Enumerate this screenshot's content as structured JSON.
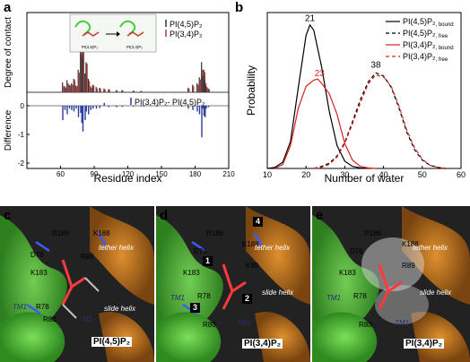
{
  "panel_letters": {
    "a": "a",
    "b": "b",
    "c": "c",
    "d": "d",
    "e": "e"
  },
  "chart_data": [
    {
      "type": "bar",
      "panel": "a",
      "top": {
        "ylabel": "Degree of contact",
        "legend": [
          "PI(4,5)P₂",
          "PI(3,4)P₂"
        ],
        "inset_labels": [
          "PI(4,5)P₂",
          "PI(3,4)P₂"
        ],
        "colors": {
          "pi45": "#333333",
          "pi34": "#b03a3a"
        },
        "bars": [
          {
            "x": 62,
            "pi45": 0.13,
            "pi34": 0.08
          },
          {
            "x": 64,
            "pi45": 0.08,
            "pi34": 0.06
          },
          {
            "x": 66,
            "pi45": 0.16,
            "pi34": 0.12
          },
          {
            "x": 68,
            "pi45": 0.1,
            "pi34": 0.09
          },
          {
            "x": 70,
            "pi45": 0.12,
            "pi34": 0.1
          },
          {
            "x": 72,
            "pi45": 0.18,
            "pi34": 0.16
          },
          {
            "x": 74,
            "pi45": 0.09,
            "pi34": 0.08
          },
          {
            "x": 76,
            "pi45": 0.3,
            "pi34": 0.26
          },
          {
            "x": 78,
            "pi45": 1.0,
            "pi34": 0.97
          },
          {
            "x": 79,
            "pi45": 0.5,
            "pi34": 0.45
          },
          {
            "x": 80,
            "pi45": 0.7,
            "pi34": 0.62
          },
          {
            "x": 82,
            "pi45": 0.25,
            "pi34": 0.2
          },
          {
            "x": 83,
            "pi45": 0.4,
            "pi34": 0.38
          },
          {
            "x": 85,
            "pi45": 0.18,
            "pi34": 0.15
          },
          {
            "x": 87,
            "pi45": 0.08,
            "pi34": 0.06
          },
          {
            "x": 89,
            "pi45": 0.1,
            "pi34": 0.09
          },
          {
            "x": 92,
            "pi45": 0.07,
            "pi34": 0.05
          },
          {
            "x": 95,
            "pi45": 0.06,
            "pi34": 0.05
          },
          {
            "x": 99,
            "pi45": 0.05,
            "pi34": 0.04
          },
          {
            "x": 103,
            "pi45": 0.04,
            "pi34": 0.04
          },
          {
            "x": 110,
            "pi45": 0.03,
            "pi34": 0.02
          },
          {
            "x": 115,
            "pi45": 0.03,
            "pi34": 0.02
          },
          {
            "x": 125,
            "pi45": 0.02,
            "pi34": 0.02
          },
          {
            "x": 132,
            "pi45": 0.02,
            "pi34": 0.01
          },
          {
            "x": 174,
            "pi45": 0.06,
            "pi34": 0.05
          },
          {
            "x": 178,
            "pi45": 0.1,
            "pi34": 0.08
          },
          {
            "x": 182,
            "pi45": 0.12,
            "pi34": 0.1
          },
          {
            "x": 184,
            "pi45": 0.2,
            "pi34": 0.17
          },
          {
            "x": 186,
            "pi45": 0.4,
            "pi34": 0.3
          },
          {
            "x": 187,
            "pi45": 0.22,
            "pi34": 0.21
          },
          {
            "x": 188,
            "pi45": 0.3,
            "pi34": 0.27
          },
          {
            "x": 189,
            "pi45": 0.16,
            "pi34": 0.12
          },
          {
            "x": 190,
            "pi45": 0.08,
            "pi34": 0.07
          },
          {
            "x": 192,
            "pi45": 0.05,
            "pi34": 0.04
          }
        ]
      },
      "bottom": {
        "ylabel": "Difference",
        "legend": "PI(3,4)P₂- PI(4,5)P₂",
        "color": "#2c3a9c",
        "ylim": [
          -2,
          2
        ],
        "yticks": [
          "0",
          "-1",
          "-2"
        ],
        "bars": [
          {
            "x": 62,
            "v": -0.5
          },
          {
            "x": 64,
            "v": -0.15
          },
          {
            "x": 66,
            "v": -0.3
          },
          {
            "x": 68,
            "v": -0.1
          },
          {
            "x": 70,
            "v": -0.15
          },
          {
            "x": 72,
            "v": -0.2
          },
          {
            "x": 74,
            "v": -0.1
          },
          {
            "x": 76,
            "v": -0.4
          },
          {
            "x": 78,
            "v": -0.25
          },
          {
            "x": 79,
            "v": -0.6
          },
          {
            "x": 80,
            "v": -0.9
          },
          {
            "x": 82,
            "v": -0.5
          },
          {
            "x": 83,
            "v": -0.2
          },
          {
            "x": 85,
            "v": -0.3
          },
          {
            "x": 87,
            "v": -0.15
          },
          {
            "x": 89,
            "v": -0.1
          },
          {
            "x": 92,
            "v": -0.1
          },
          {
            "x": 95,
            "v": -0.08
          },
          {
            "x": 99,
            "v": 0.1
          },
          {
            "x": 103,
            "v": -0.05
          },
          {
            "x": 110,
            "v": -0.05
          },
          {
            "x": 115,
            "v": -0.04
          },
          {
            "x": 125,
            "v": -0.03
          },
          {
            "x": 132,
            "v": -0.03
          },
          {
            "x": 174,
            "v": -0.1
          },
          {
            "x": 178,
            "v": -0.15
          },
          {
            "x": 182,
            "v": -0.2
          },
          {
            "x": 184,
            "v": -0.3
          },
          {
            "x": 186,
            "v": -1.1
          },
          {
            "x": 187,
            "v": -0.1
          },
          {
            "x": 188,
            "v": -0.35
          },
          {
            "x": 189,
            "v": -0.4
          },
          {
            "x": 190,
            "v": -0.1
          },
          {
            "x": 192,
            "v": -0.05
          }
        ]
      },
      "xlabel": "Residue index",
      "xlim": [
        30,
        210
      ],
      "xticks": [
        60,
        90,
        120,
        150,
        180,
        210
      ]
    },
    {
      "type": "line",
      "panel": "b",
      "xlabel": "Number of water",
      "ylabel": "Probability",
      "xlim": [
        10,
        60
      ],
      "ylim": [
        0,
        0.15
      ],
      "xticks": [
        10,
        20,
        30,
        40,
        50,
        60
      ],
      "series": [
        {
          "label_main": "PI(4,5)P₂",
          "label_sub": "bound",
          "color": "#000000",
          "dash": "",
          "x": [
            10,
            12,
            14,
            16,
            18,
            20,
            21,
            22,
            24,
            26,
            28,
            30,
            32,
            34,
            36
          ],
          "y": [
            0,
            0.001,
            0.006,
            0.026,
            0.078,
            0.128,
            0.138,
            0.133,
            0.098,
            0.055,
            0.022,
            0.007,
            0.002,
            0.0005,
            0
          ]
        },
        {
          "label_main": "PI(4,5)P₂",
          "label_sub": "free",
          "color": "#000000",
          "dash": "4,3",
          "x": [
            22,
            24,
            26,
            28,
            30,
            32,
            34,
            36,
            38,
            40,
            42,
            44,
            46,
            48,
            50,
            52,
            54,
            56
          ],
          "y": [
            0,
            0.002,
            0.005,
            0.012,
            0.025,
            0.045,
            0.066,
            0.083,
            0.092,
            0.089,
            0.078,
            0.058,
            0.035,
            0.018,
            0.008,
            0.003,
            0.001,
            0
          ]
        },
        {
          "label_main": "PI(3,4)P₂",
          "label_sub": "bound",
          "color": "#d62020",
          "dash": "",
          "x": [
            12,
            14,
            16,
            18,
            20,
            22,
            23,
            24,
            26,
            28,
            30,
            32,
            34,
            36,
            38
          ],
          "y": [
            0,
            0.004,
            0.022,
            0.058,
            0.079,
            0.085,
            0.086,
            0.082,
            0.072,
            0.052,
            0.024,
            0.008,
            0.002,
            0.0005,
            0
          ]
        },
        {
          "label_main": "PI(3,4)P₂",
          "label_sub": "free",
          "color": "#d62020",
          "dash": "4,3",
          "x": [
            22,
            24,
            26,
            28,
            30,
            32,
            34,
            36,
            38,
            40,
            42,
            44,
            46,
            48,
            50,
            52,
            54,
            56
          ],
          "y": [
            0,
            0.001,
            0.004,
            0.011,
            0.024,
            0.043,
            0.063,
            0.081,
            0.09,
            0.088,
            0.079,
            0.06,
            0.037,
            0.02,
            0.009,
            0.003,
            0.001,
            0
          ]
        }
      ],
      "annotations": [
        {
          "text": "21",
          "x": 21,
          "y": 0.142,
          "color": "#000000"
        },
        {
          "text": "23",
          "x": 23.5,
          "y": 0.089,
          "color": "#d62020"
        },
        {
          "text": "38",
          "x": 38,
          "y": 0.097,
          "color": "#000000"
        }
      ]
    }
  ],
  "panels_mol": {
    "c": {
      "title": "PI(4,5)P₂",
      "labels": [
        "R186",
        "K188",
        "D76",
        "K183",
        "R89",
        "R78",
        "R80",
        "TM1",
        "M1",
        "tether helix",
        "slide helix"
      ]
    },
    "d": {
      "title": "PI(3,4)P₂",
      "labels": [
        "R186",
        "K188",
        "D76",
        "K183",
        "K89",
        "R78",
        "R80",
        "TM1",
        "TM1",
        "tether helix",
        "slide helix"
      ],
      "boxes": [
        "1",
        "2",
        "3",
        "4"
      ]
    },
    "e": {
      "title": "PI(3,4)P₂",
      "labels": [
        "R186",
        "K188",
        "D76",
        "K183",
        "R89",
        "R78",
        "R80",
        "TM1",
        "TM1",
        "tether helix",
        "slide helix"
      ]
    }
  }
}
